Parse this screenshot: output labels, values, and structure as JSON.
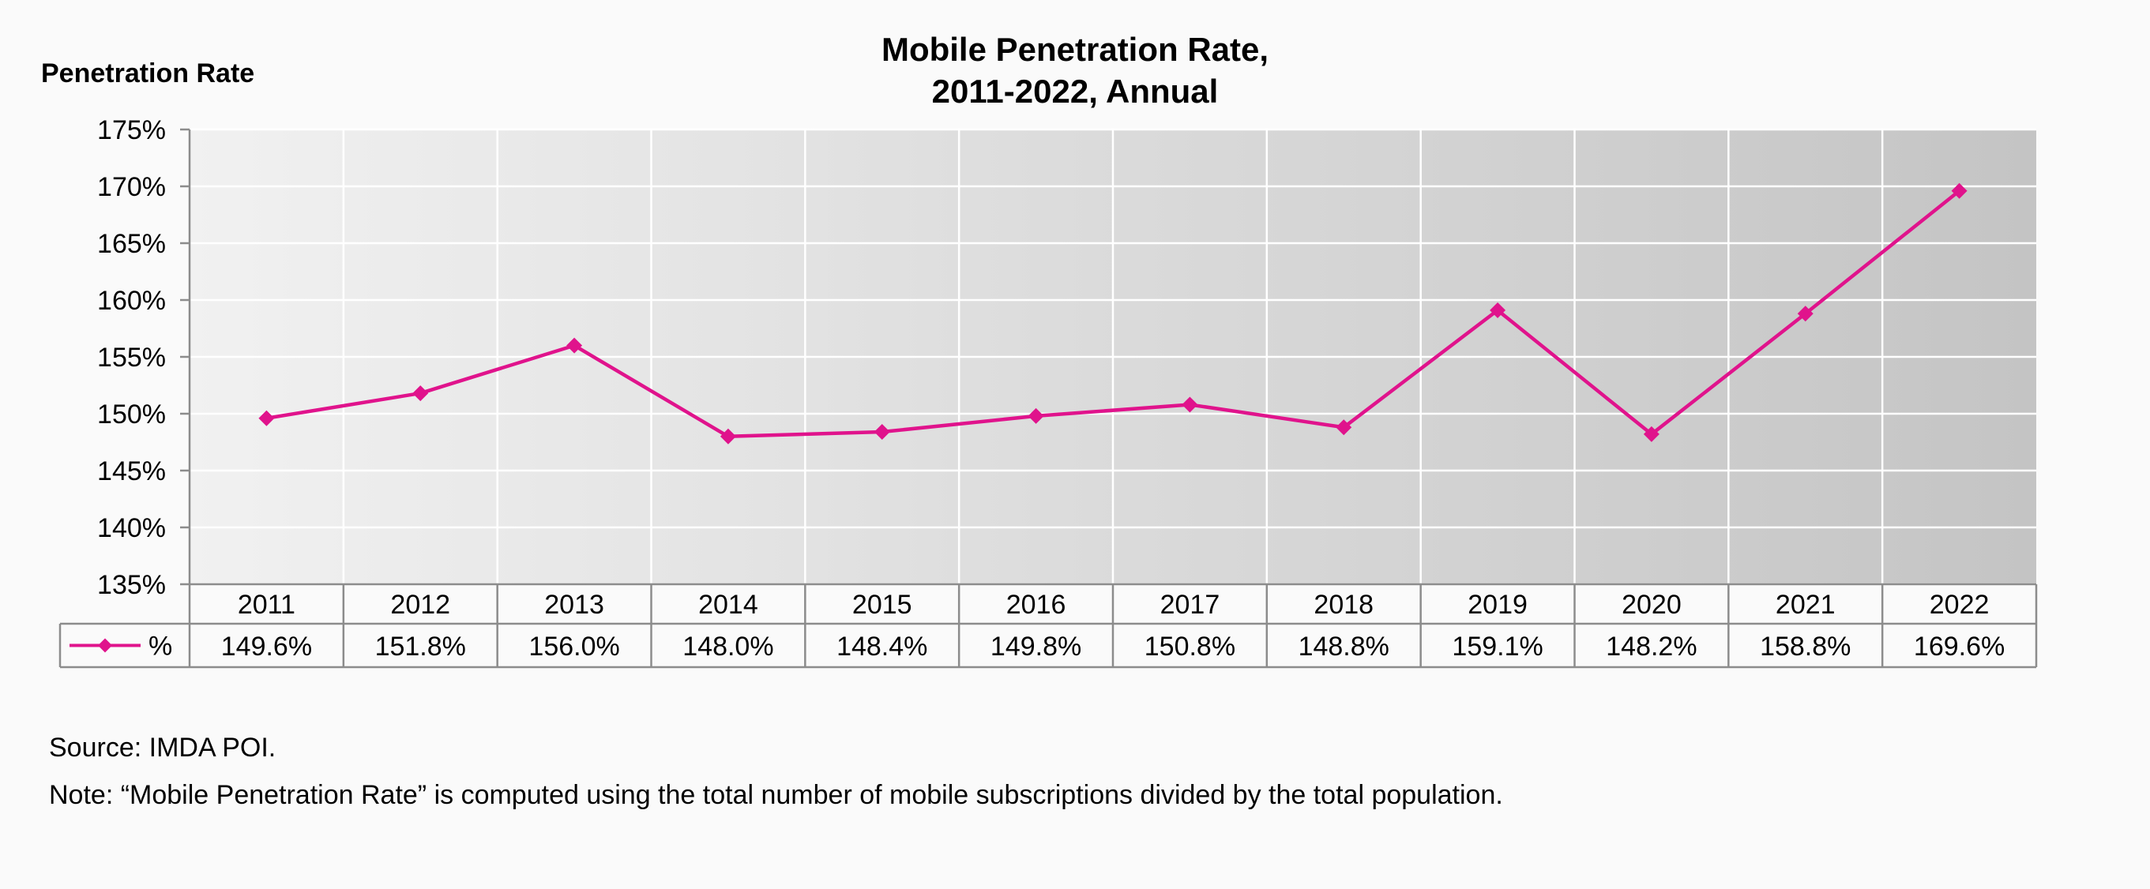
{
  "chart_data": {
    "type": "line",
    "title_line1": "Mobile Penetration Rate,",
    "title_line2": "2011-2022, Annual",
    "ylabel": "Penetration Rate",
    "xlabel": "",
    "categories": [
      "2011",
      "2012",
      "2013",
      "2014",
      "2015",
      "2016",
      "2017",
      "2018",
      "2019",
      "2020",
      "2021",
      "2022"
    ],
    "series": [
      {
        "name": "%",
        "values": [
          149.6,
          151.8,
          156.0,
          148.0,
          148.4,
          149.8,
          150.8,
          148.8,
          159.1,
          148.2,
          158.8,
          169.6
        ],
        "value_labels": [
          "149.6%",
          "151.8%",
          "156.0%",
          "148.0%",
          "148.4%",
          "149.8%",
          "150.8%",
          "148.8%",
          "159.1%",
          "148.2%",
          "158.8%",
          "169.6%"
        ],
        "color": "#e0138c",
        "marker": "diamond"
      }
    ],
    "ylim": [
      135,
      175
    ],
    "yticks": [
      135,
      140,
      145,
      150,
      155,
      160,
      165,
      170,
      175
    ],
    "ytick_labels": [
      "135%",
      "140%",
      "145%",
      "150%",
      "155%",
      "160%",
      "165%",
      "170%",
      "175%"
    ],
    "grid": true,
    "legend_placement": "data-table-left",
    "data_table": true,
    "plot_background": [
      "#f1f1f1",
      "#c4c4c4"
    ]
  },
  "footer": {
    "source": "Source: IMDA POI.",
    "note": "Note: “Mobile Penetration Rate” is computed using the total number of mobile subscriptions divided by the total population."
  }
}
